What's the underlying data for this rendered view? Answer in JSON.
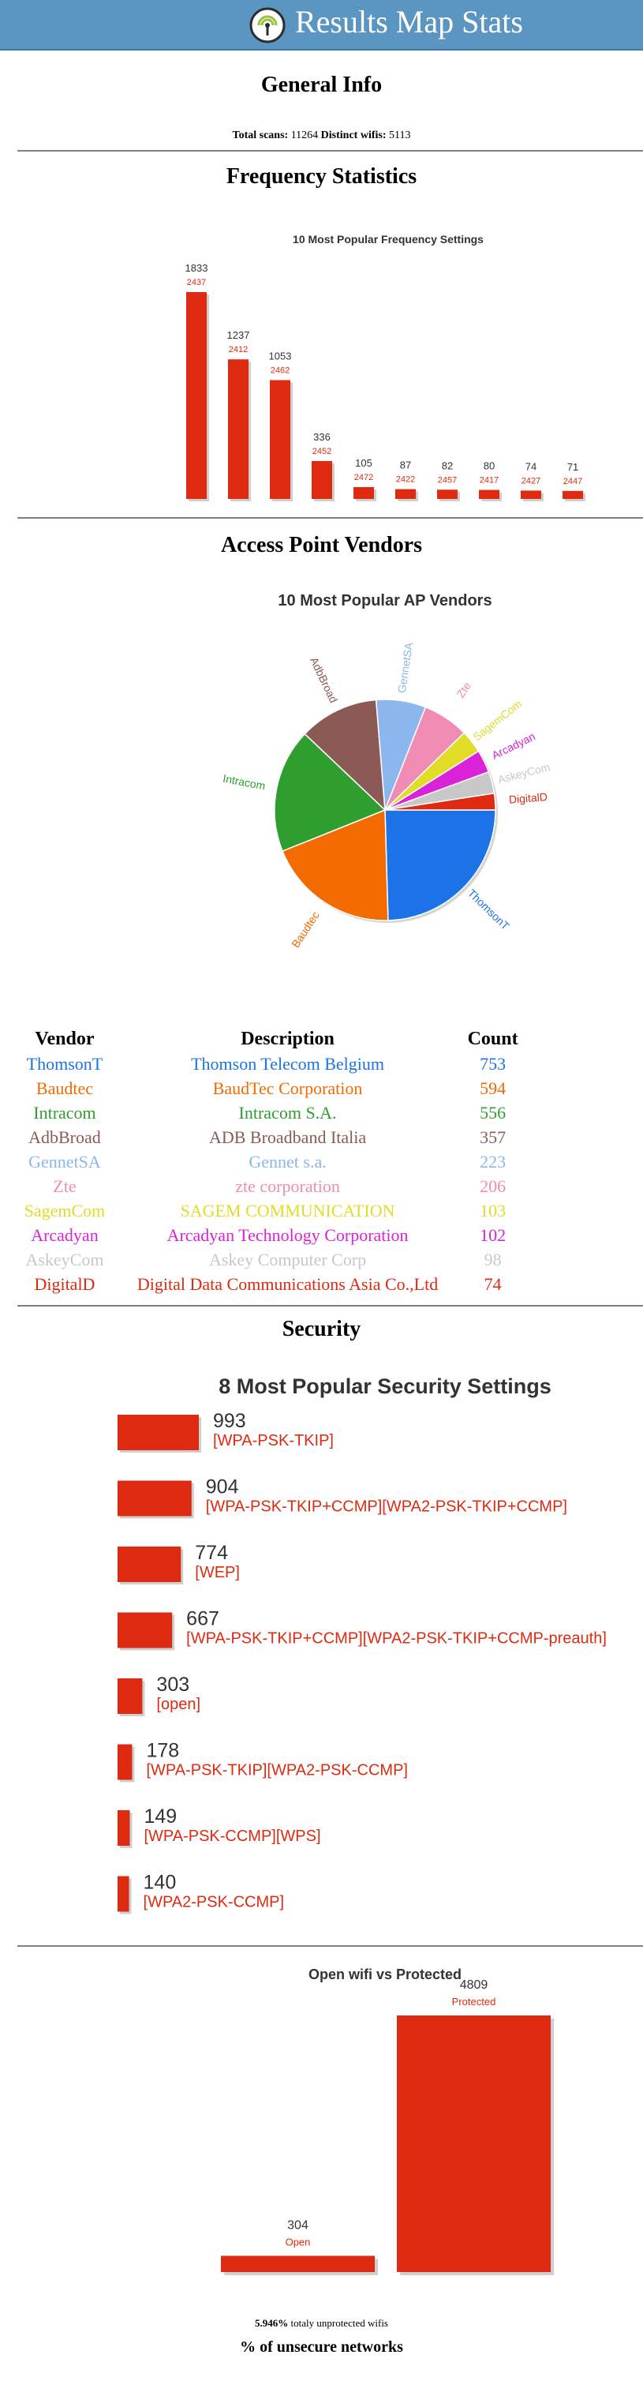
{
  "header": {
    "title": "Results Map Stats",
    "logo_icon": "wifi-signal-logo-icon"
  },
  "general": {
    "title": "General Info",
    "total_scans_label": "Total scans:",
    "total_scans": "11264",
    "distinct_label": "Distinct wifis:",
    "distinct_wifis": "5113"
  },
  "frequency": {
    "title": "Frequency Statistics"
  },
  "vendors": {
    "title": "Access Point Vendors",
    "table": {
      "headers": [
        "Vendor",
        "Description",
        "Count"
      ],
      "rows": [
        {
          "vendor": "ThomsonT",
          "description": "Thomson Telecom Belgium",
          "count": "753",
          "color": "#1c73e8"
        },
        {
          "vendor": "Baudtec",
          "description": "BaudTec Corporation",
          "count": "594",
          "color": "#f26a00"
        },
        {
          "vendor": "Intracom",
          "description": "Intracom S.A.",
          "count": "556",
          "color": "#2e9e2e"
        },
        {
          "vendor": "AdbBroad",
          "description": "ADB Broadband Italia",
          "count": "357",
          "color": "#8c5a55"
        },
        {
          "vendor": "GennetSA",
          "description": "Gennet s.a.",
          "count": "223",
          "color": "#8bb6ee"
        },
        {
          "vendor": "Zte",
          "description": "zte corporation",
          "count": "206",
          "color": "#f08cb4"
        },
        {
          "vendor": "SagemCom",
          "description": "SAGEM COMMUNICATION",
          "count": "103",
          "color": "#e0dc28"
        },
        {
          "vendor": "Arcadyan",
          "description": "Arcadyan Technology Corporation",
          "count": "102",
          "color": "#da22d8"
        },
        {
          "vendor": "AskeyCom",
          "description": "Askey Computer Corp",
          "count": "98",
          "color": "#c8c8c8"
        },
        {
          "vendor": "DigitalD",
          "description": "Digital Data Communications Asia Co.,Ltd",
          "count": "74",
          "color": "#dd2a10"
        }
      ]
    }
  },
  "security": {
    "title": "Security"
  },
  "unsecure": {
    "title": "% of unsecure networks",
    "percent": "5.946%",
    "suffix": "totaly unprotected wifis"
  },
  "chart_data": [
    {
      "type": "bar",
      "title": "10 Most Popular Frequency Settings",
      "categories": [
        "2437",
        "2412",
        "2462",
        "2452",
        "2472",
        "2422",
        "2457",
        "2417",
        "2427",
        "2447"
      ],
      "values": [
        1833,
        1237,
        1053,
        336,
        105,
        87,
        82,
        80,
        74,
        71
      ],
      "bar_color": "#dd2a10"
    },
    {
      "type": "pie",
      "title": "10 Most Popular AP Vendors",
      "categories": [
        "ThomsonT",
        "Baudtec",
        "Intracom",
        "AdbBroad",
        "GennetSA",
        "Zte",
        "SagemCom",
        "Arcadyan",
        "AskeyCom",
        "DigitalD"
      ],
      "values": [
        753,
        594,
        556,
        357,
        223,
        206,
        103,
        102,
        98,
        74
      ],
      "colors": [
        "#1c73e8",
        "#f26a00",
        "#2e9e2e",
        "#8c5a55",
        "#8bb6ee",
        "#f08cb4",
        "#e0dc28",
        "#da22d8",
        "#c8c8c8",
        "#dd2a10"
      ]
    },
    {
      "type": "bar",
      "orientation": "horizontal",
      "title": "8 Most Popular Security Settings",
      "categories": [
        "[WPA-PSK-TKIP]",
        "[WPA-PSK-TKIP+CCMP][WPA2-PSK-TKIP+CCMP]",
        "[WEP]",
        "[WPA-PSK-TKIP+CCMP][WPA2-PSK-TKIP+CCMP-preauth]",
        "[open]",
        "[WPA-PSK-TKIP][WPA2-PSK-CCMP]",
        "[WPA-PSK-CCMP][WPS]",
        "[WPA2-PSK-CCMP]"
      ],
      "values": [
        993,
        904,
        774,
        667,
        303,
        178,
        149,
        140
      ],
      "bar_color": "#dd2a10"
    },
    {
      "type": "bar",
      "title": "Open wifi vs Protected",
      "categories": [
        "Open",
        "Protected"
      ],
      "values": [
        304,
        4809
      ],
      "bar_color": "#dd2a10"
    }
  ]
}
